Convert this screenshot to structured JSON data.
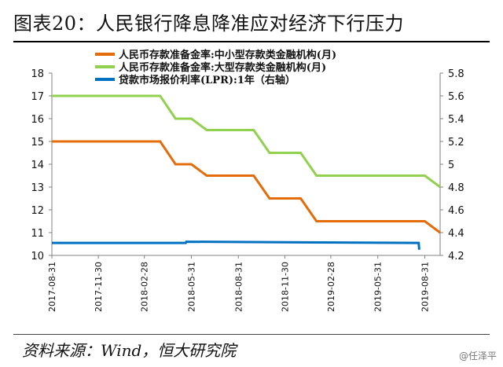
{
  "title": "图表20：人民银行降息降准应对经济下行压力",
  "source": "资料来源：Wind，恒大研究院",
  "watermark": "@任泽平",
  "colors": {
    "orange": "#E46C0A",
    "green": "#92D050",
    "blue": "#0070C0",
    "axis": "#808080"
  },
  "chart_data": {
    "type": "line",
    "x_tick_labels": [
      "2017-08-31",
      "2017-11-30",
      "2018-02-28",
      "2018-05-31",
      "2018-08-31",
      "2018-11-30",
      "2019-02-28",
      "2019-05-31",
      "2019-08-31"
    ],
    "x_range": [
      "2017-08-31",
      "2019-09-30"
    ],
    "y_left": {
      "min": 10,
      "max": 18,
      "ticks": [
        "10",
        "11",
        "12",
        "13",
        "14",
        "15",
        "16",
        "17",
        "18"
      ]
    },
    "y_right": {
      "min": 4.2,
      "max": 5.8,
      "ticks": [
        "4.2",
        "4.4",
        "4.6",
        "4.8",
        "5",
        "5.2",
        "5.4",
        "5.6",
        "5.8"
      ]
    },
    "series": [
      {
        "name": "人民币存款准备金率:中小型存款类金融机构(月)",
        "axis": "left",
        "color": "#E46C0A",
        "points": [
          [
            "2017-08-31",
            15
          ],
          [
            "2017-09-30",
            15
          ],
          [
            "2017-10-31",
            15
          ],
          [
            "2017-11-30",
            15
          ],
          [
            "2017-12-31",
            15
          ],
          [
            "2018-01-31",
            15
          ],
          [
            "2018-02-28",
            15
          ],
          [
            "2018-03-31",
            15
          ],
          [
            "2018-04-30",
            14
          ],
          [
            "2018-05-31",
            14
          ],
          [
            "2018-06-30",
            13.5
          ],
          [
            "2018-07-31",
            13.5
          ],
          [
            "2018-08-31",
            13.5
          ],
          [
            "2018-09-30",
            13.5
          ],
          [
            "2018-10-31",
            12.5
          ],
          [
            "2018-11-30",
            12.5
          ],
          [
            "2018-12-31",
            12.5
          ],
          [
            "2019-01-31",
            11.5
          ],
          [
            "2019-02-28",
            11.5
          ],
          [
            "2019-03-31",
            11.5
          ],
          [
            "2019-04-30",
            11.5
          ],
          [
            "2019-05-31",
            11.5
          ],
          [
            "2019-06-30",
            11.5
          ],
          [
            "2019-07-31",
            11.5
          ],
          [
            "2019-08-31",
            11.5
          ],
          [
            "2019-09-30",
            11
          ]
        ]
      },
      {
        "name": "人民币存款准备金率:大型存款类金融机构(月)",
        "axis": "left",
        "color": "#92D050",
        "points": [
          [
            "2017-08-31",
            17
          ],
          [
            "2017-09-30",
            17
          ],
          [
            "2017-10-31",
            17
          ],
          [
            "2017-11-30",
            17
          ],
          [
            "2017-12-31",
            17
          ],
          [
            "2018-01-31",
            17
          ],
          [
            "2018-02-28",
            17
          ],
          [
            "2018-03-31",
            17
          ],
          [
            "2018-04-30",
            16
          ],
          [
            "2018-05-31",
            16
          ],
          [
            "2018-06-30",
            15.5
          ],
          [
            "2018-07-31",
            15.5
          ],
          [
            "2018-08-31",
            15.5
          ],
          [
            "2018-09-30",
            15.5
          ],
          [
            "2018-10-31",
            14.5
          ],
          [
            "2018-11-30",
            14.5
          ],
          [
            "2018-12-31",
            14.5
          ],
          [
            "2019-01-31",
            13.5
          ],
          [
            "2019-02-28",
            13.5
          ],
          [
            "2019-03-31",
            13.5
          ],
          [
            "2019-04-30",
            13.5
          ],
          [
            "2019-05-31",
            13.5
          ],
          [
            "2019-06-30",
            13.5
          ],
          [
            "2019-07-31",
            13.5
          ],
          [
            "2019-08-31",
            13.5
          ],
          [
            "2019-09-30",
            13
          ]
        ]
      },
      {
        "name": "贷款市场报价利率(LPR):1年（右轴）",
        "axis": "right",
        "color": "#0070C0",
        "points": [
          [
            "2017-08-31",
            4.31
          ],
          [
            "2018-05-20",
            4.31
          ],
          [
            "2018-05-21",
            4.32
          ],
          [
            "2019-08-19",
            4.31
          ],
          [
            "2019-08-20",
            4.25
          ]
        ]
      }
    ],
    "legend_position": "top-center",
    "grid": false
  }
}
